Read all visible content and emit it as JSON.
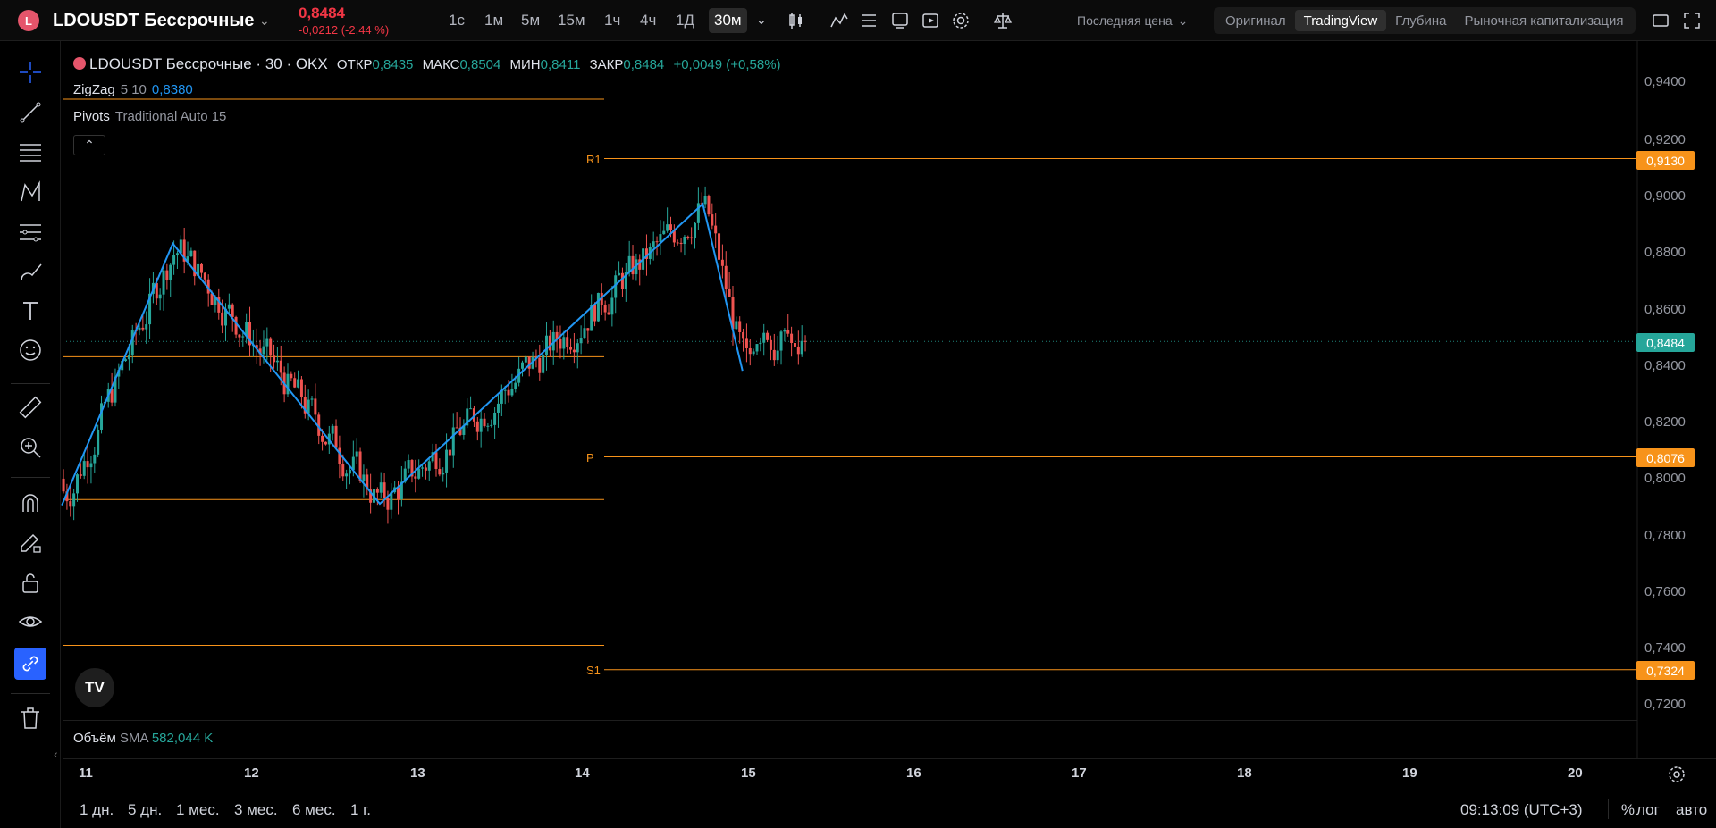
{
  "topbar": {
    "symbol_initial": "L",
    "symbol": "LDOUSDT Бессрочные",
    "price": "0,8484",
    "change": "-0,0212 (-2,44 %)",
    "timeframes": [
      "1с",
      "1м",
      "5м",
      "15м",
      "1ч",
      "4ч",
      "1Д",
      "30м"
    ],
    "active_timeframe": "30м",
    "price_type": "Последняя цена",
    "views": [
      "Оригинал",
      "TradingView",
      "Глубина",
      "Рыночная капитализация"
    ],
    "active_view": "TradingView"
  },
  "legend": {
    "title": "LDOUSDT Бессрочные · 30 · OKX",
    "open_label": "ОТКР",
    "open": "0,8435",
    "high_label": "МАКС",
    "high": "0,8504",
    "low_label": "МИН",
    "low": "0,8411",
    "close_label": "ЗАКР",
    "close": "0,8484",
    "change": "+0,0049 (+0,58%)",
    "zigzag_name": "ZigZag",
    "zigzag_params": "5 10",
    "zigzag_value": "0,8380",
    "pivots_name": "Pivots",
    "pivots_params": "Traditional Auto 15"
  },
  "pivots": {
    "r1_label": "R1",
    "r1_value": "0,9130",
    "p_label": "P",
    "p_value": "0,8076",
    "s1_label": "S1",
    "s1_value": "0,7324"
  },
  "price_axis": [
    "0,9400",
    "0,9200",
    "0,9000",
    "0,8800",
    "0,8600",
    "0,8400",
    "0,8200",
    "0,8000",
    "0,7800",
    "0,7600",
    "0,7400",
    "0,7200"
  ],
  "current_price_tag": "0,8484",
  "volume": {
    "label": "Объём",
    "sma": "SMA",
    "value": "582,044 K"
  },
  "time_axis": [
    "11",
    "12",
    "13",
    "14",
    "15",
    "16",
    "17",
    "18",
    "19",
    "20"
  ],
  "ranges": [
    "1 дн.",
    "5 дн.",
    "1 мес.",
    "3 мес.",
    "6 мес.",
    "1 г."
  ],
  "clock": "09:13:09 (UTC+3)",
  "scale_options": {
    "percent": "%",
    "log": "лог",
    "auto": "авто"
  },
  "colors": {
    "up": "#26a69a",
    "down": "#ef5350",
    "zigzag": "#2196f3",
    "pivot": "#f7931a",
    "accent": "#2962ff"
  },
  "chart_data": {
    "type": "candlestick",
    "title": "LDOUSDT Бессрочные · 30 · OKX",
    "ylim": [
      0.71,
      0.95
    ],
    "x_labels": [
      "11",
      "12",
      "13",
      "14",
      "15",
      "16",
      "17",
      "18",
      "19",
      "20"
    ],
    "last_close": 0.8484,
    "zigzag_points": [
      {
        "day": 10.85,
        "price": 0.7905
      },
      {
        "day": 11.52,
        "price": 0.883
      },
      {
        "day": 12.77,
        "price": 0.791
      },
      {
        "day": 14.72,
        "price": 0.897
      },
      {
        "day": 14.96,
        "price": 0.838
      }
    ],
    "pivot_levels": {
      "R1": 0.913,
      "P": 0.8076,
      "S1": 0.7324
    }
  }
}
